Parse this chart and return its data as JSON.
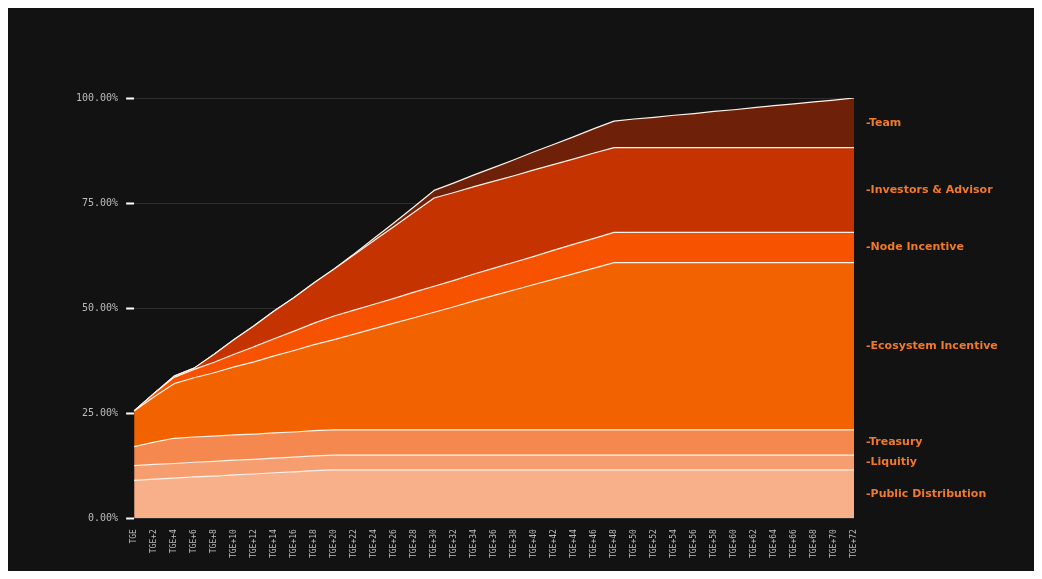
{
  "chart_data": {
    "type": "area",
    "stacked": true,
    "grid": "y",
    "categories": [
      "TGE",
      "TGE+2",
      "TGE+4",
      "TGE+6",
      "TGE+8",
      "TGE+10",
      "TGE+12",
      "TGE+14",
      "TGE+16",
      "TGE+18",
      "TGE+20",
      "TGE+22",
      "TGE+24",
      "TGE+26",
      "TGE+28",
      "TGE+30",
      "TGE+32",
      "TGE+34",
      "TGE+36",
      "TGE+38",
      "TGE+40",
      "TGE+42",
      "TGE+44",
      "TGE+46",
      "TGE+48",
      "TGE+50",
      "TGE+52",
      "TGE+54",
      "TGE+56",
      "TGE+58",
      "TGE+60",
      "TGE+62",
      "TGE+64",
      "TGE+66",
      "TGE+68",
      "TGE+70",
      "TGE+72"
    ],
    "ylim": [
      0,
      100
    ],
    "yticks": [
      {
        "value": 0,
        "label": "0.00%"
      },
      {
        "value": 25,
        "label": "25.00%"
      },
      {
        "value": 50,
        "label": "50.00%"
      },
      {
        "value": 75,
        "label": "75.00%"
      },
      {
        "value": 100,
        "label": "100.00%"
      }
    ],
    "series": [
      {
        "name": "-Public Distribution",
        "color": "#f8b08a",
        "values": [
          9.0,
          9.3,
          9.5,
          9.8,
          10.0,
          10.3,
          10.5,
          10.8,
          11.0,
          11.3,
          11.5,
          11.5,
          11.5,
          11.5,
          11.5,
          11.5,
          11.5,
          11.5,
          11.5,
          11.5,
          11.5,
          11.5,
          11.5,
          11.5,
          11.5,
          11.5,
          11.5,
          11.5,
          11.5,
          11.5,
          11.5,
          11.5,
          11.5,
          11.5,
          11.5,
          11.5,
          11.5
        ]
      },
      {
        "name": "-Liquitiy",
        "color": "#f69e70",
        "values": [
          3.5,
          3.5,
          3.5,
          3.5,
          3.5,
          3.5,
          3.5,
          3.5,
          3.5,
          3.5,
          3.5,
          3.5,
          3.5,
          3.5,
          3.5,
          3.5,
          3.5,
          3.5,
          3.5,
          3.5,
          3.5,
          3.5,
          3.5,
          3.5,
          3.5,
          3.5,
          3.5,
          3.5,
          3.5,
          3.5,
          3.5,
          3.5,
          3.5,
          3.5,
          3.5,
          3.5,
          3.5
        ]
      },
      {
        "name": "-Treasury",
        "color": "#f5884e",
        "values": [
          4.5,
          5.3,
          6.0,
          6.0,
          6.0,
          6.0,
          6.0,
          6.0,
          6.0,
          6.0,
          6.0,
          6.0,
          6.0,
          6.0,
          6.0,
          6.0,
          6.0,
          6.0,
          6.0,
          6.0,
          6.0,
          6.0,
          6.0,
          6.0,
          6.0,
          6.0,
          6.0,
          6.0,
          6.0,
          6.0,
          6.0,
          6.0,
          6.0,
          6.0,
          6.0,
          6.0,
          6.0
        ]
      },
      {
        "name": "-Ecosystem Incentive",
        "color": "#f26300",
        "values": [
          8.5,
          10.8,
          13.0,
          14.1,
          15.1,
          16.2,
          17.2,
          18.3,
          19.4,
          20.5,
          21.5,
          22.8,
          24.1,
          25.4,
          26.7,
          28.0,
          29.3,
          30.7,
          32.0,
          33.3,
          34.6,
          35.9,
          37.2,
          38.5,
          39.8,
          39.8,
          39.8,
          39.8,
          39.8,
          39.8,
          39.8,
          39.8,
          39.8,
          39.8,
          39.8,
          39.8,
          39.8
        ]
      },
      {
        "name": "-Node Incentive",
        "color": "#f75200",
        "values": [
          0,
          0.8,
          1.5,
          2.0,
          2.5,
          3.0,
          3.6,
          4.1,
          4.6,
          5.1,
          5.6,
          5.7,
          5.8,
          5.9,
          6.1,
          6.2,
          6.3,
          6.4,
          6.5,
          6.6,
          6.7,
          6.9,
          7.0,
          7.1,
          7.2,
          7.2,
          7.2,
          7.2,
          7.2,
          7.2,
          7.2,
          7.2,
          7.2,
          7.2,
          7.2,
          7.2,
          7.2
        ]
      },
      {
        "name": "-Investors & Advisor",
        "color": "#c43300",
        "values": [
          0,
          0,
          0.3,
          0.3,
          1.9,
          3.5,
          5.0,
          6.6,
          8.0,
          9.6,
          11.2,
          13.2,
          15.2,
          17.1,
          19.0,
          21.0,
          20.9,
          20.8,
          20.7,
          20.6,
          20.6,
          20.4,
          20.3,
          20.3,
          20.2,
          20.2,
          20.2,
          20.2,
          20.2,
          20.2,
          20.2,
          20.2,
          20.2,
          20.2,
          20.2,
          20.2,
          20.2
        ]
      },
      {
        "name": "-Team",
        "color": "#6e2008",
        "values": [
          0,
          0,
          0,
          0,
          0,
          0,
          0,
          0,
          0,
          0,
          0,
          0.2,
          0.5,
          0.9,
          1.3,
          1.8,
          2.3,
          2.8,
          3.3,
          3.8,
          4.3,
          4.8,
          5.3,
          5.8,
          6.3,
          6.8,
          7.2,
          7.7,
          8.1,
          8.6,
          9.0,
          9.5,
          10.0,
          10.4,
          10.9,
          11.3,
          11.8
        ]
      }
    ]
  }
}
